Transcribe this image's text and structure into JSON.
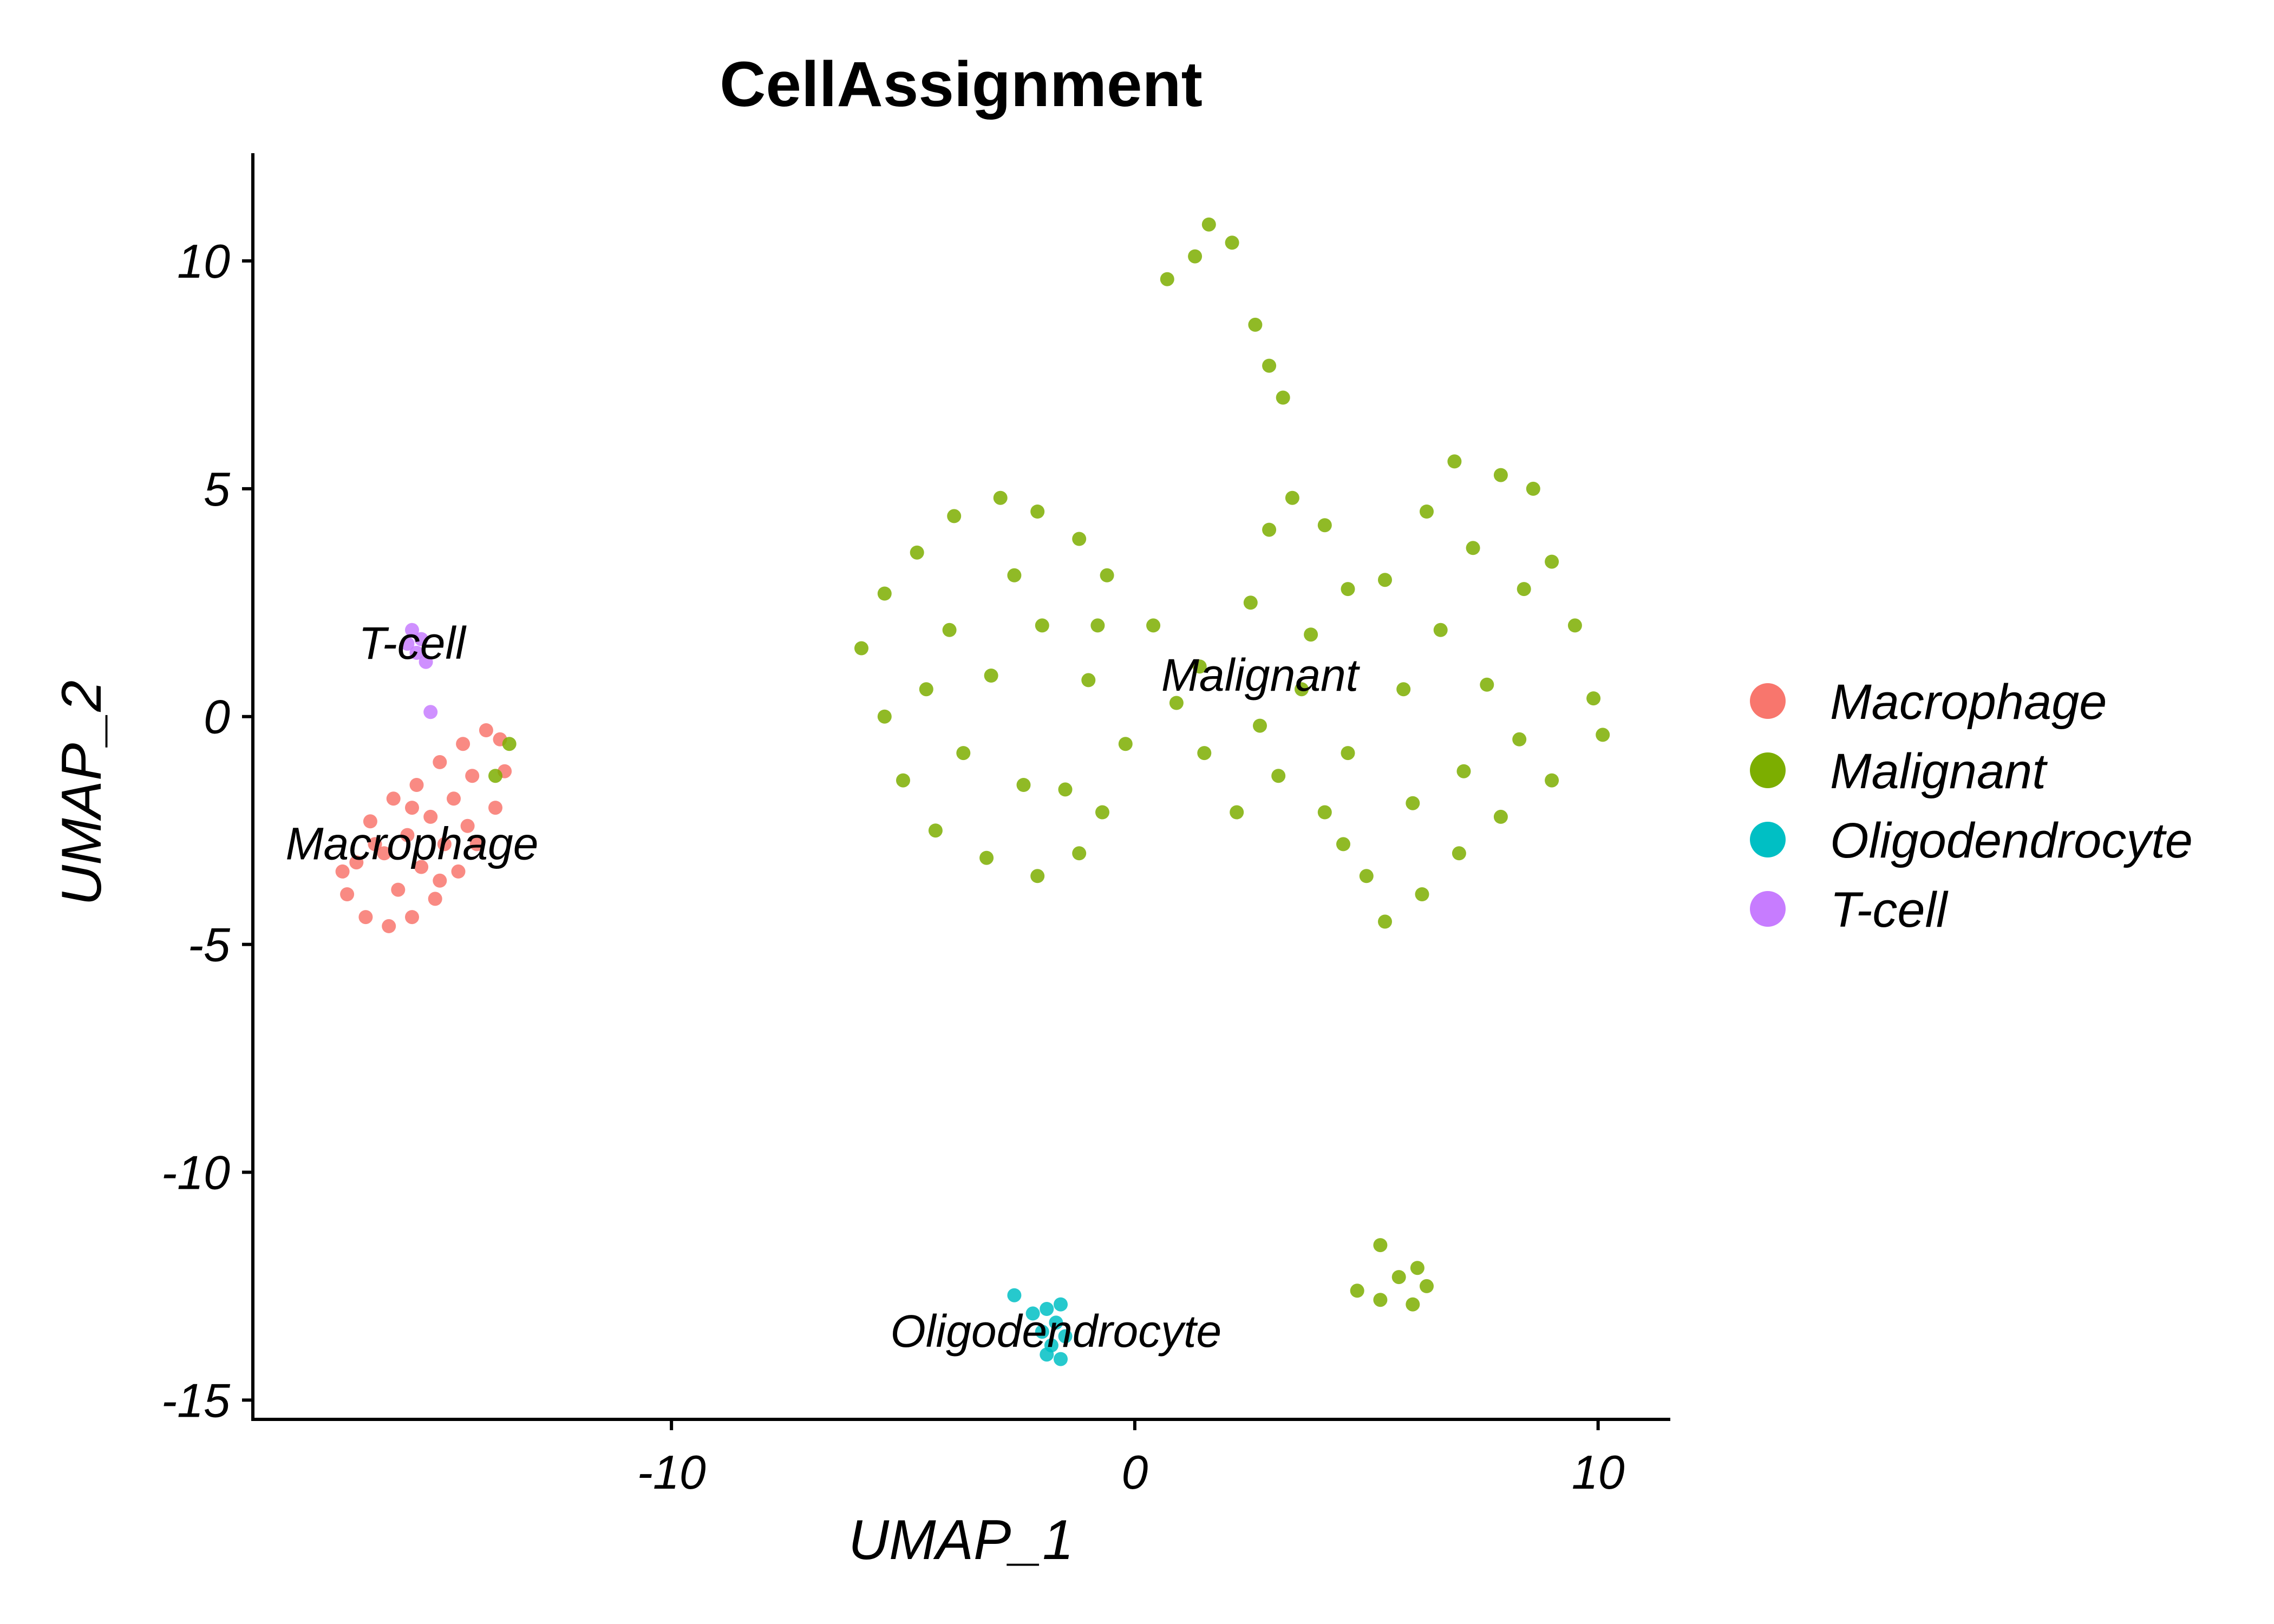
{
  "chart_data": {
    "type": "scatter",
    "title": "CellAssignment",
    "xlabel": "UMAP_1",
    "ylabel": "UMAP_2",
    "xlim": [
      -19.0,
      11.5
    ],
    "ylim": [
      -15.4,
      12.4
    ],
    "xticks": [
      -10,
      0,
      10
    ],
    "yticks": [
      -15,
      -10,
      -5,
      0,
      5,
      10
    ],
    "xtick_labels": [
      "-10",
      "0",
      "10"
    ],
    "ytick_labels": [
      "-15",
      "-10",
      "-5",
      "0",
      "5",
      "10"
    ],
    "grid": false,
    "legend_position": "right",
    "series": [
      {
        "name": "Macrophage",
        "color": "#F8766D",
        "points": [
          [
            -16.8,
            -3.2
          ],
          [
            -16.5,
            -2.3
          ],
          [
            -16.0,
            -1.8
          ],
          [
            -15.5,
            -1.5
          ],
          [
            -15.0,
            -1.0
          ],
          [
            -14.5,
            -0.6
          ],
          [
            -14.0,
            -0.3
          ],
          [
            -13.7,
            -0.5
          ],
          [
            -13.6,
            -1.2
          ],
          [
            -13.8,
            -2.0
          ],
          [
            -14.2,
            -2.8
          ],
          [
            -14.6,
            -3.4
          ],
          [
            -15.1,
            -4.0
          ],
          [
            -15.6,
            -4.4
          ],
          [
            -16.1,
            -4.6
          ],
          [
            -16.6,
            -4.4
          ],
          [
            -17.0,
            -3.9
          ],
          [
            -17.1,
            -3.4
          ],
          [
            -16.2,
            -3.0
          ],
          [
            -15.7,
            -2.6
          ],
          [
            -15.2,
            -2.2
          ],
          [
            -14.7,
            -1.8
          ],
          [
            -14.3,
            -1.3
          ],
          [
            -15.9,
            -3.8
          ],
          [
            -15.4,
            -3.3
          ],
          [
            -14.9,
            -2.8
          ],
          [
            -16.4,
            -2.8
          ],
          [
            -15.0,
            -3.6
          ],
          [
            -14.4,
            -2.4
          ],
          [
            -15.6,
            -2.0
          ]
        ],
        "label": "Macrophage"
      },
      {
        "name": "Malignant",
        "color": "#7CAE00",
        "points": [
          [
            -5.9,
            1.5
          ],
          [
            -5.4,
            2.7
          ],
          [
            -4.7,
            3.6
          ],
          [
            -3.9,
            4.4
          ],
          [
            -2.9,
            4.8
          ],
          [
            -2.1,
            4.5
          ],
          [
            -1.2,
            3.9
          ],
          [
            -0.6,
            3.1
          ],
          [
            0.4,
            2.0
          ],
          [
            1.4,
            1.1
          ],
          [
            2.5,
            2.5
          ],
          [
            2.9,
            4.1
          ],
          [
            3.4,
            4.8
          ],
          [
            4.1,
            4.2
          ],
          [
            4.6,
            2.8
          ],
          [
            5.4,
            3.0
          ],
          [
            6.3,
            4.5
          ],
          [
            6.9,
            5.6
          ],
          [
            7.9,
            5.3
          ],
          [
            8.6,
            5.0
          ],
          [
            9.0,
            3.4
          ],
          [
            9.5,
            2.0
          ],
          [
            9.9,
            0.4
          ],
          [
            10.1,
            -0.4
          ],
          [
            9.0,
            -1.4
          ],
          [
            7.9,
            -2.2
          ],
          [
            7.0,
            -3.0
          ],
          [
            6.2,
            -3.9
          ],
          [
            5.4,
            -4.5
          ],
          [
            5.0,
            -3.5
          ],
          [
            4.1,
            -2.1
          ],
          [
            3.1,
            -1.3
          ],
          [
            2.2,
            -2.1
          ],
          [
            1.5,
            -0.8
          ],
          [
            0.9,
            0.3
          ],
          [
            -0.2,
            -0.6
          ],
          [
            -0.7,
            -2.1
          ],
          [
            -1.2,
            -3.0
          ],
          [
            -2.1,
            -3.5
          ],
          [
            -3.2,
            -3.1
          ],
          [
            -4.3,
            -2.5
          ],
          [
            -5.0,
            -1.4
          ],
          [
            -5.4,
            0.0
          ],
          [
            -4.0,
            1.9
          ],
          [
            -3.1,
            0.9
          ],
          [
            -2.0,
            2.0
          ],
          [
            -1.0,
            0.8
          ],
          [
            -3.7,
            -0.8
          ],
          [
            -2.4,
            -1.5
          ],
          [
            -1.5,
            -1.6
          ],
          [
            -4.5,
            0.6
          ],
          [
            -2.6,
            3.1
          ],
          [
            -0.8,
            2.0
          ],
          [
            3.6,
            0.6
          ],
          [
            4.6,
            -0.8
          ],
          [
            5.8,
            0.6
          ],
          [
            6.6,
            1.9
          ],
          [
            7.6,
            0.7
          ],
          [
            8.3,
            -0.5
          ],
          [
            7.1,
            -1.2
          ],
          [
            6.0,
            -1.9
          ],
          [
            8.4,
            2.8
          ],
          [
            7.3,
            3.7
          ],
          [
            3.8,
            1.8
          ],
          [
            2.7,
            -0.2
          ],
          [
            4.5,
            -2.8
          ],
          [
            1.6,
            10.8
          ],
          [
            2.1,
            10.4
          ],
          [
            1.3,
            10.1
          ],
          [
            0.7,
            9.6
          ],
          [
            2.6,
            8.6
          ],
          [
            2.9,
            7.7
          ],
          [
            3.2,
            7.0
          ],
          [
            5.3,
            -11.6
          ],
          [
            5.7,
            -12.3
          ],
          [
            6.0,
            -12.9
          ],
          [
            5.3,
            -12.8
          ],
          [
            4.8,
            -12.6
          ],
          [
            6.3,
            -12.5
          ],
          [
            6.1,
            -12.1
          ],
          [
            -13.5,
            -0.6
          ],
          [
            -13.8,
            -1.3
          ]
        ],
        "label": "Malignant"
      },
      {
        "name": "Oligodendrocyte",
        "color": "#00BFC4",
        "points": [
          [
            -1.9,
            -13.0
          ],
          [
            -1.6,
            -12.9
          ],
          [
            -1.7,
            -13.3
          ],
          [
            -2.0,
            -13.5
          ],
          [
            -1.8,
            -13.8
          ],
          [
            -1.6,
            -14.1
          ],
          [
            -2.2,
            -13.1
          ],
          [
            -1.5,
            -13.6
          ],
          [
            -2.6,
            -12.7
          ],
          [
            -1.9,
            -14.0
          ]
        ],
        "label": "Oligodendrocyte"
      },
      {
        "name": "T-cell",
        "color": "#C77CFF",
        "points": [
          [
            -15.6,
            1.9
          ],
          [
            -15.4,
            1.7
          ],
          [
            -15.7,
            1.6
          ],
          [
            -15.5,
            1.4
          ],
          [
            -15.3,
            1.2
          ],
          [
            -15.2,
            0.1
          ]
        ],
        "label": "T-cell"
      }
    ],
    "cluster_labels": [
      {
        "text": "T-cell",
        "x": -15.6,
        "y": 1.6
      },
      {
        "text": "Macrophage",
        "x": -15.6,
        "y": -2.8
      },
      {
        "text": "Malignant",
        "x": 2.7,
        "y": 0.9
      },
      {
        "text": "Oligodendrocyte",
        "x": -1.7,
        "y": -13.5
      }
    ]
  }
}
